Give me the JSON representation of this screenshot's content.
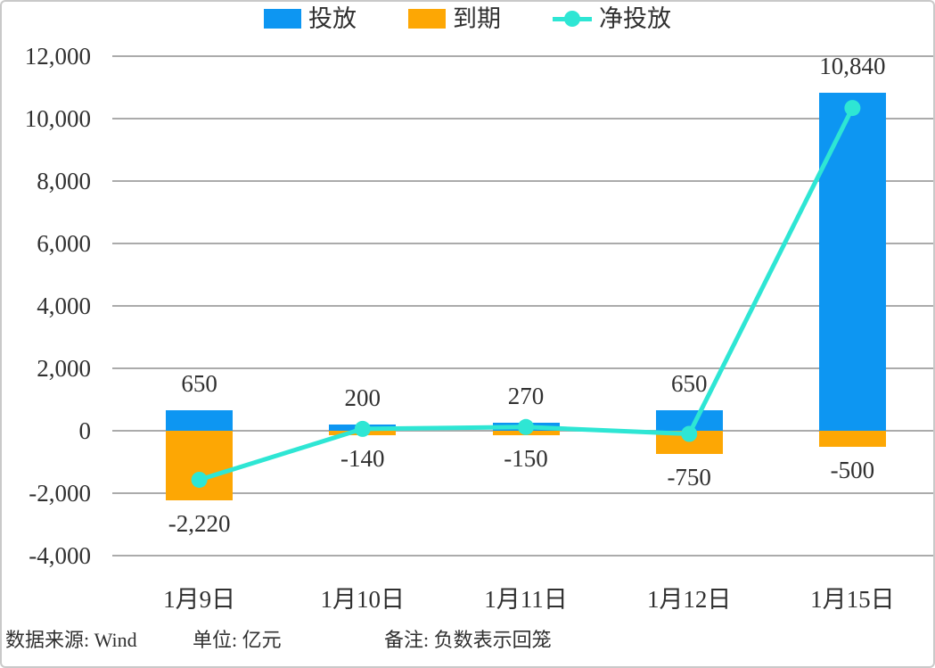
{
  "legend": {
    "items": [
      {
        "label": "投放",
        "color": "#0d96f2",
        "type": "bar"
      },
      {
        "label": "到期",
        "color": "#fda704",
        "type": "bar"
      },
      {
        "label": "净投放",
        "color": "#2ee6d4",
        "type": "line"
      }
    ]
  },
  "chart_data": {
    "type": "bar",
    "subtype": "bar+line combo",
    "categories": [
      "1月9日",
      "1月10日",
      "1月11日",
      "1月12日",
      "1月15日"
    ],
    "series": [
      {
        "name": "投放",
        "type": "bar",
        "color": "#0d96f2",
        "values": [
          650,
          200,
          270,
          650,
          10840
        ],
        "labels": [
          "650",
          "200",
          "270",
          "650",
          "10,840"
        ]
      },
      {
        "name": "到期",
        "type": "bar",
        "color": "#fda704",
        "values": [
          -2220,
          -140,
          -150,
          -750,
          -500
        ],
        "labels": [
          "-2,220",
          "-140",
          "-150",
          "-750",
          "-500"
        ]
      },
      {
        "name": "净投放",
        "type": "line",
        "color": "#2ee6d4",
        "values": [
          -1570,
          60,
          120,
          -100,
          10340
        ]
      }
    ],
    "title": "",
    "xlabel": "",
    "ylabel": "",
    "ylim": [
      -4000,
      12000
    ],
    "ytick_interval": 2000,
    "yticks": [
      "12,000",
      "10,000",
      "8,000",
      "6,000",
      "4,000",
      "2,000",
      "0",
      "-2,000",
      "-4,000"
    ],
    "grid": true,
    "gridline_color": "#ababab",
    "legend_position": "top"
  },
  "footer": {
    "source": "数据来源: Wind",
    "unit": "单位: 亿元",
    "note": "备注: 负数表示回笼"
  }
}
